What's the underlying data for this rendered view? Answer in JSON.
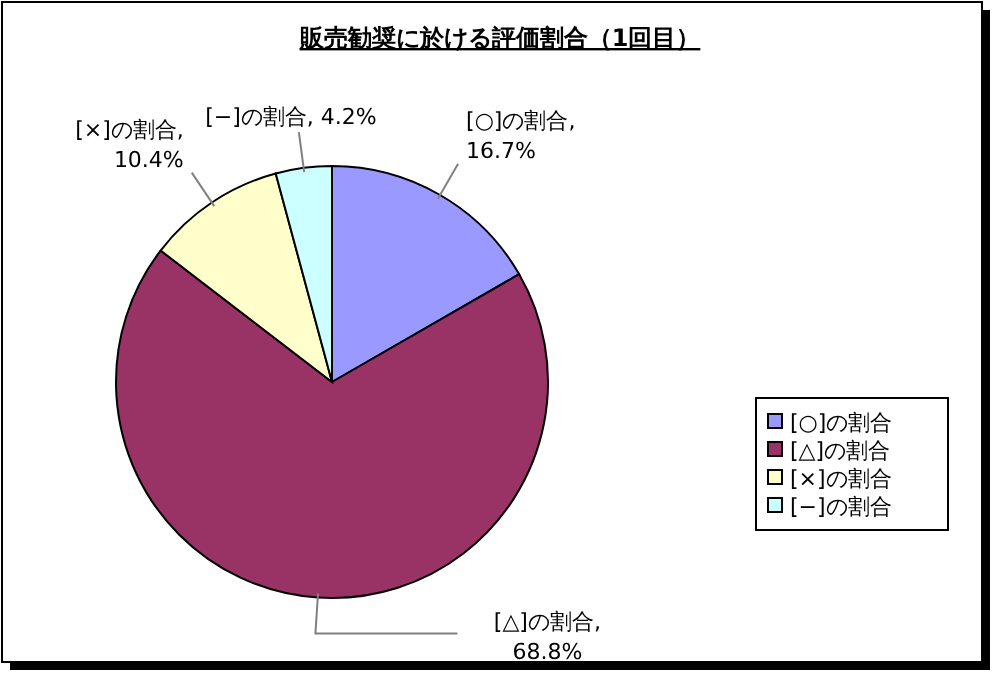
{
  "chart_data": {
    "type": "pie",
    "title": "販売勧奨に於ける評価割合（1回目）",
    "categories": [
      "[○]の割合",
      "[△]の割合",
      "[×]の割合",
      "[−]の割合"
    ],
    "values": [
      16.7,
      68.8,
      10.4,
      4.2
    ],
    "value_labels": [
      "[○]の割合, 16.7%",
      "[△]の割合, 68.8%",
      "[×]の割合, 10.4%",
      "[−]の割合, 4.2%"
    ],
    "colors": [
      "#9999ff",
      "#993366",
      "#ffffcc",
      "#ccffff"
    ],
    "legend": "right"
  }
}
